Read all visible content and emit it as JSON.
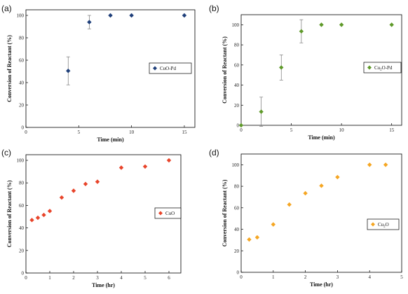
{
  "chart_data": [
    {
      "type": "scatter",
      "panel_label": "(a)",
      "xlabel": "Time (min)",
      "ylabel": "Conversion of Reactant (%)",
      "xlim": [
        0,
        16
      ],
      "ylim": [
        0,
        105
      ],
      "xticks": [
        0,
        5,
        10,
        15
      ],
      "xtick_labels": [
        "0",
        "5",
        "10",
        "15"
      ],
      "yticks": [
        0,
        20,
        40,
        60,
        80,
        100
      ],
      "ytick_labels": [
        "0",
        "20",
        "40",
        "60",
        "80",
        "100"
      ],
      "legend": "right",
      "color": "#1f3f7a",
      "series": [
        {
          "name": "CuO-Pd",
          "name_sub": "",
          "name_suffix": "",
          "x": [
            4,
            6,
            8,
            10,
            15
          ],
          "y": [
            50.5,
            94,
            100,
            100,
            100
          ],
          "err": [
            12.5,
            6,
            0,
            0,
            0
          ]
        }
      ]
    },
    {
      "type": "scatter",
      "panel_label": "(b)",
      "xlabel": "Time (min)",
      "ylabel": "Conversion of Reactant (%)",
      "xlim": [
        0,
        16
      ],
      "ylim": [
        0,
        110
      ],
      "xticks": [
        0,
        5,
        10,
        15
      ],
      "xtick_labels": [
        "0",
        "5",
        "10",
        "15"
      ],
      "yticks": [
        0,
        20,
        40,
        60,
        80,
        100
      ],
      "ytick_labels": [
        "0",
        "20",
        "40",
        "60",
        "80",
        "100"
      ],
      "legend": "right",
      "color": "#5f9a2a",
      "series": [
        {
          "name": "Cu",
          "name_sub": "2",
          "name_suffix": "O-Pd",
          "x": [
            0,
            2,
            4,
            6,
            8,
            10,
            15
          ],
          "y": [
            0,
            13.5,
            57.5,
            93.5,
            100,
            100,
            100
          ],
          "err": [
            0,
            14.5,
            12.5,
            11.5,
            0,
            0,
            0
          ]
        }
      ]
    },
    {
      "type": "scatter",
      "panel_label": "(c)",
      "xlabel": "Time (hr)",
      "ylabel": "Conversion of Reactant (%)",
      "xlim": [
        0,
        6.5
      ],
      "ylim": [
        0,
        105
      ],
      "xticks": [
        0,
        1,
        2,
        3,
        4,
        5,
        6
      ],
      "xtick_labels": [
        "0",
        "1",
        "2",
        "3",
        "4",
        "5",
        "6"
      ],
      "yticks": [
        0,
        20,
        40,
        60,
        80,
        100
      ],
      "ytick_labels": [
        "0",
        "20",
        "40",
        "60",
        "80",
        "100"
      ],
      "legend": "right",
      "color": "#e8442a",
      "series": [
        {
          "name": "CuO",
          "name_sub": "",
          "name_suffix": "",
          "x": [
            0.25,
            0.5,
            0.75,
            1,
            1.5,
            2,
            2.5,
            3,
            4,
            5,
            6
          ],
          "y": [
            47,
            49,
            51.5,
            55,
            67,
            73,
            79,
            81,
            93.5,
            94.5,
            100
          ],
          "err": []
        }
      ]
    },
    {
      "type": "scatter",
      "panel_label": "(d)",
      "xlabel": "Time (hr)",
      "ylabel": "Conversion of Reactant (%)",
      "xlim": [
        0,
        5
      ],
      "ylim": [
        0,
        110
      ],
      "xticks": [
        0,
        1,
        2,
        3,
        4,
        5
      ],
      "xtick_labels": [
        "0",
        "1",
        "2",
        "3",
        "4",
        "5"
      ],
      "yticks": [
        0,
        20,
        40,
        60,
        80,
        100
      ],
      "ytick_labels": [
        "0",
        "20",
        "40",
        "60",
        "80",
        "100"
      ],
      "legend": "right",
      "color": "#f5a623",
      "series": [
        {
          "name": "Cu",
          "name_sub": "2",
          "name_suffix": "O",
          "x": [
            0.25,
            0.5,
            1,
            1.5,
            2,
            2.5,
            3,
            4,
            4.5
          ],
          "y": [
            30.5,
            32.5,
            44.5,
            63,
            73.5,
            80.5,
            88.5,
            100,
            100
          ],
          "err": []
        }
      ]
    }
  ]
}
